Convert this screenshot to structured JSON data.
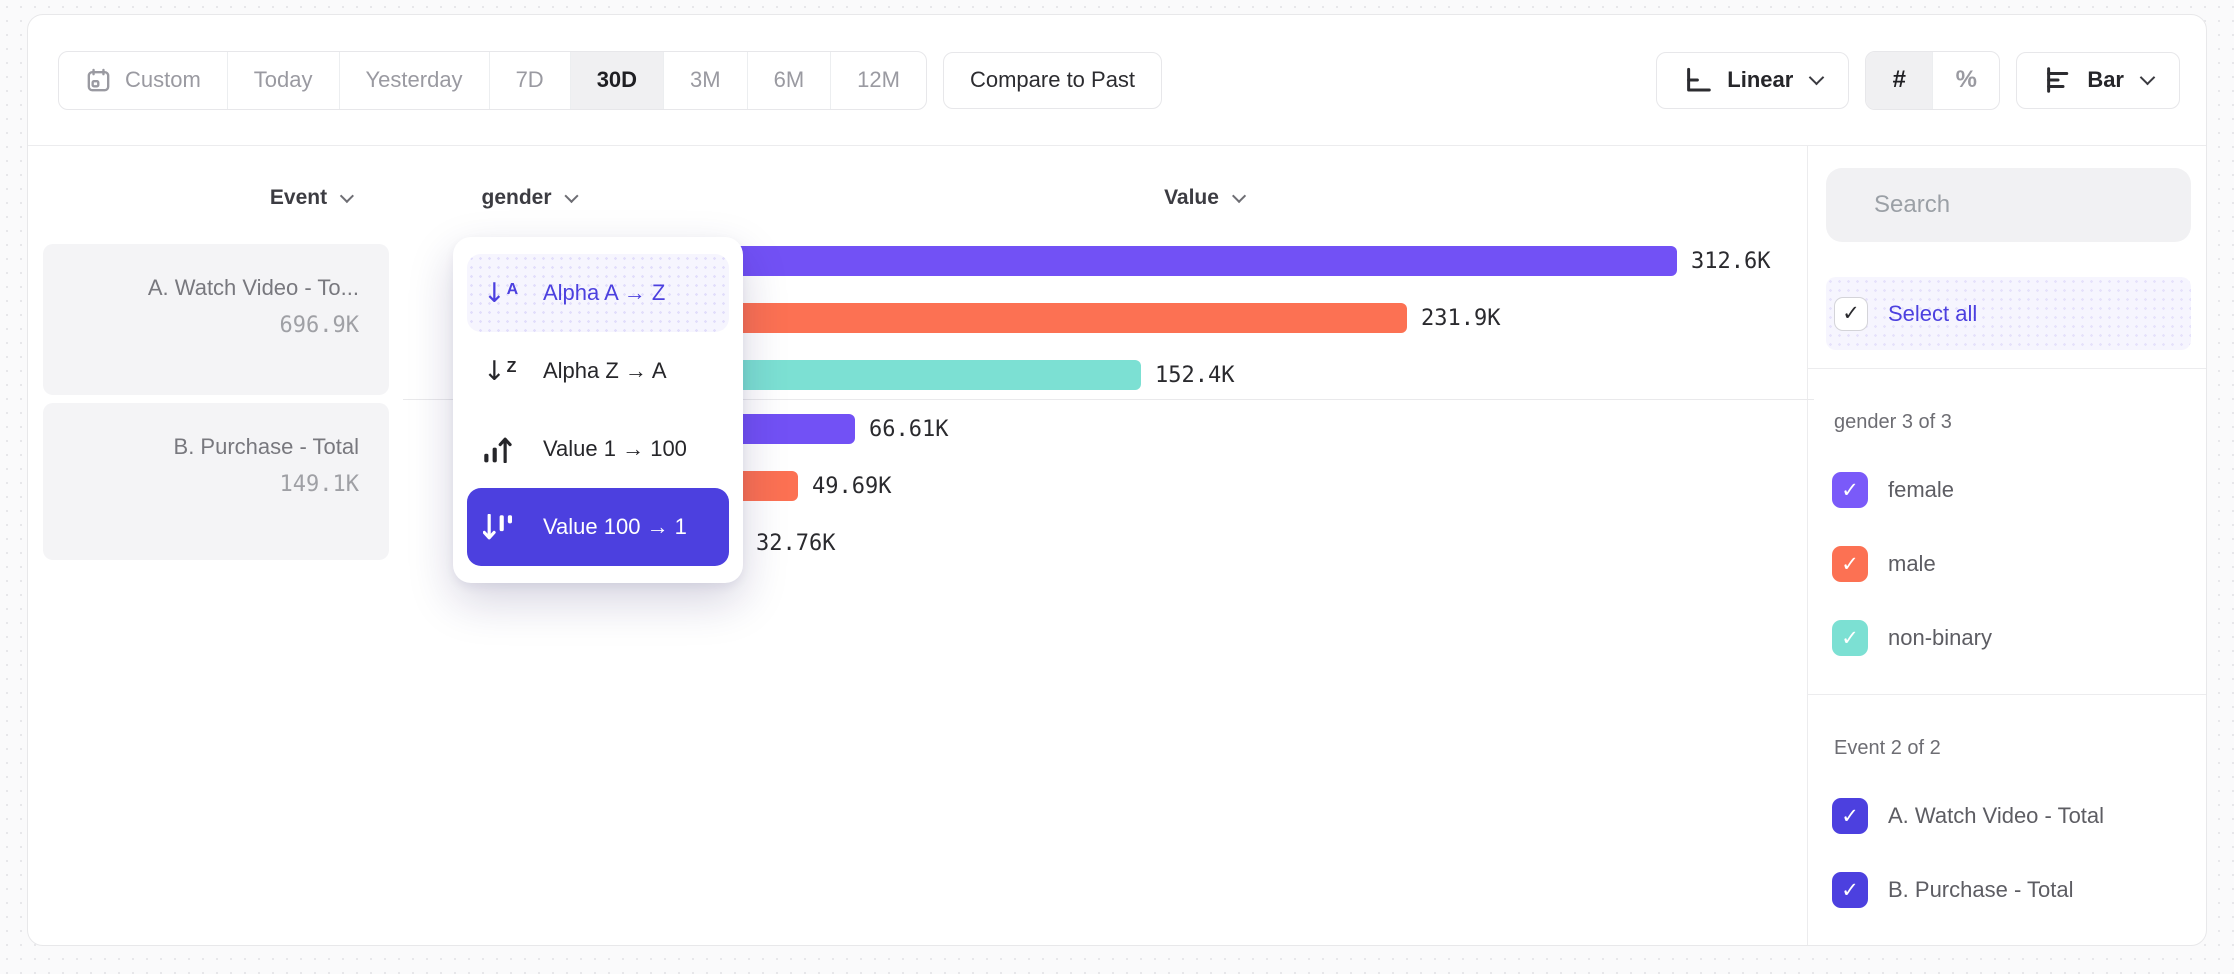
{
  "toolbar": {
    "date_ranges": [
      "Custom",
      "Today",
      "Yesterday",
      "7D",
      "30D",
      "3M",
      "6M",
      "12M"
    ],
    "selected_range": "30D",
    "compare_label": "Compare to Past",
    "scale_label": "Linear",
    "count_symbol": "#",
    "percent_symbol": "%",
    "chart_type_label": "Bar"
  },
  "columns": {
    "event": "Event",
    "breakdown": "gender",
    "value": "Value"
  },
  "events": [
    {
      "label": "A. Watch Video - To...",
      "value": "696.9K"
    },
    {
      "label": "B. Purchase - Total",
      "value": "149.1K"
    }
  ],
  "sort_menu": {
    "items": [
      {
        "label": "Alpha A → Z",
        "icon": "alpha-asc-icon",
        "state": "hover"
      },
      {
        "label": "Alpha Z → A",
        "icon": "alpha-desc-icon",
        "state": "normal"
      },
      {
        "label": "Value 1 → 100",
        "icon": "value-asc-icon",
        "state": "normal"
      },
      {
        "label": "Value 100 → 1",
        "icon": "value-desc-icon",
        "state": "selected"
      }
    ]
  },
  "chart_data": {
    "type": "bar",
    "orientation": "horizontal",
    "series_by": "gender",
    "value_axis": "Value",
    "max_value": 312600,
    "groups": [
      {
        "event": "A. Watch Video - Total",
        "total": "696.9K",
        "bars": [
          {
            "segment": "female",
            "value": 312600,
            "label": "312.6K",
            "color": "#7251f5"
          },
          {
            "segment": "male",
            "value": 231900,
            "label": "231.9K",
            "color": "#fc7153"
          },
          {
            "segment": "non-binary",
            "value": 152400,
            "label": "152.4K",
            "color": "#7ce0d3"
          }
        ]
      },
      {
        "event": "B. Purchase - Total",
        "total": "149.1K",
        "bars": [
          {
            "segment": "female",
            "value": 66610,
            "label": "66.61K",
            "color": "#7251f5"
          },
          {
            "segment": "male",
            "value": 49690,
            "label": "49.69K",
            "color": "#fc7153"
          },
          {
            "segment": "non-binary",
            "value": 32760,
            "label": "32.76K",
            "color": "#7ce0d3"
          }
        ]
      }
    ]
  },
  "sidebar": {
    "search_placeholder": "Search",
    "select_all_label": "Select all",
    "sections": [
      {
        "title": "gender 3 of 3",
        "items": [
          {
            "label": "female",
            "color": "#7a5af9",
            "checked": true
          },
          {
            "label": "male",
            "color": "#fc7153",
            "checked": true
          },
          {
            "label": "non-binary",
            "color": "#7ce0d3",
            "checked": true
          }
        ]
      },
      {
        "title": "Event 2 of 2",
        "items": [
          {
            "label": "A. Watch Video - Total",
            "color": "#4c40df",
            "checked": true
          },
          {
            "label": "B. Purchase - Total",
            "color": "#4c40df",
            "checked": true
          }
        ]
      }
    ]
  },
  "colors": {
    "accent": "#4c40df",
    "purple": "#7251f5",
    "orange": "#fc7153",
    "teal": "#7ce0d3"
  }
}
